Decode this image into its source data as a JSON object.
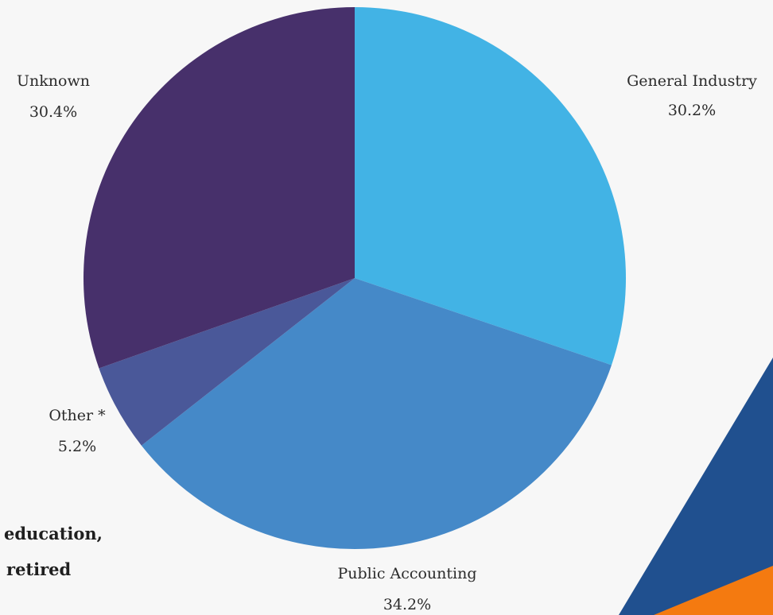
{
  "chart_data": {
    "type": "pie",
    "slices": [
      {
        "label": "General Industry",
        "value": 30.2,
        "display": "30.2%",
        "color": "#42b3e5"
      },
      {
        "label": "Public Accounting",
        "value": 34.2,
        "display": "34.2%",
        "color": "#4589c8"
      },
      {
        "label": "Other *",
        "value": 5.2,
        "display": "5.2%",
        "color": "#4a5899"
      },
      {
        "label": "Unknown",
        "value": 30.4,
        "display": "30.4%",
        "color": "#47306b"
      }
    ]
  },
  "footnote": {
    "line1": "education,",
    "line2": "retired"
  },
  "decoration": {
    "blue": "#20508f",
    "orange": "#f47a10"
  }
}
